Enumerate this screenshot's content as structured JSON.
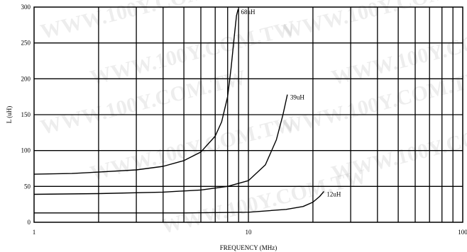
{
  "watermark": "WWW.100Y.COM.TW",
  "chart_data": {
    "type": "line",
    "xlabel": "FREQUENCY (MHz)",
    "ylabel": "L (uH)",
    "xscale": "log",
    "xlim": [
      1,
      100
    ],
    "ylim": [
      0,
      300
    ],
    "grid": true,
    "xticks": [
      1,
      10,
      100
    ],
    "xtick_labels": [
      "1",
      "10",
      "100"
    ],
    "yticks": [
      0,
      50,
      100,
      150,
      200,
      250,
      300
    ],
    "ytick_labels": [
      "0",
      "50",
      "100",
      "150",
      "200",
      "250",
      "300"
    ],
    "series": [
      {
        "name": "68uH",
        "x": [
          1,
          1.5,
          2,
          3,
          4,
          5,
          6,
          7,
          7.5,
          8,
          8.3,
          8.6,
          8.8,
          8.95
        ],
        "y": [
          67,
          68,
          70,
          73,
          78,
          86,
          98,
          120,
          140,
          175,
          215,
          260,
          288,
          297
        ]
      },
      {
        "name": "39uH",
        "x": [
          1,
          2,
          4,
          6,
          8,
          10,
          12,
          13.5,
          14.5,
          15.2
        ],
        "y": [
          39,
          40,
          42,
          45,
          50,
          58,
          80,
          115,
          150,
          178
        ]
      },
      {
        "name": "12uH",
        "x": [
          1,
          5,
          10,
          15,
          18,
          20,
          21.5,
          22.5
        ],
        "y": [
          13,
          13,
          14,
          18,
          22,
          28,
          36,
          43
        ]
      }
    ]
  }
}
